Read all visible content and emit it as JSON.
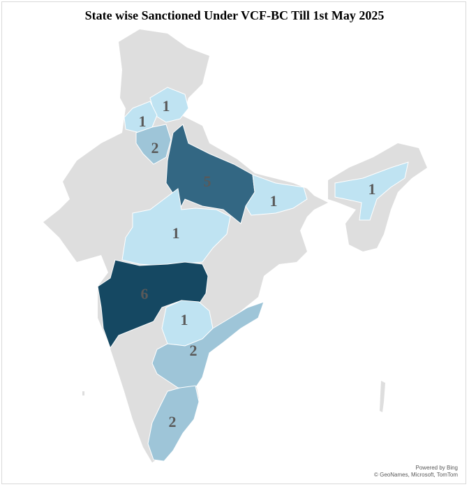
{
  "title": "State wise Sanctioned Under VCF-BC Till 1st May 2025",
  "colors": {
    "no_data": "#dedede",
    "value_1": "#bfe3f2",
    "value_2": "#9ec5d8",
    "value_5": "#336783",
    "value_6": "#154862",
    "label": "#595959"
  },
  "map_data": {
    "type": "choropleth",
    "region": "India",
    "metric": "Sanctioned under VCF-BC",
    "states": [
      {
        "name": "Himachal Pradesh",
        "value": 1,
        "label": "1"
      },
      {
        "name": "Punjab",
        "value": 1,
        "label": "1"
      },
      {
        "name": "Haryana",
        "value": 2,
        "label": "2"
      },
      {
        "name": "Uttar Pradesh",
        "value": 5,
        "label": "5"
      },
      {
        "name": "Bihar",
        "value": 1,
        "label": "1"
      },
      {
        "name": "Assam",
        "value": 1,
        "label": "1"
      },
      {
        "name": "Madhya Pradesh",
        "value": 1,
        "label": "1"
      },
      {
        "name": "Maharashtra",
        "value": 6,
        "label": "6"
      },
      {
        "name": "Telangana",
        "value": 1,
        "label": "1"
      },
      {
        "name": "Andhra Pradesh",
        "value": 2,
        "label": "2"
      },
      {
        "name": "Tamil Nadu",
        "value": 2,
        "label": "2"
      }
    ]
  },
  "attribution": {
    "line1": "Powered by Bing",
    "line2": "© GeoNames, Microsoft, TomTom"
  }
}
